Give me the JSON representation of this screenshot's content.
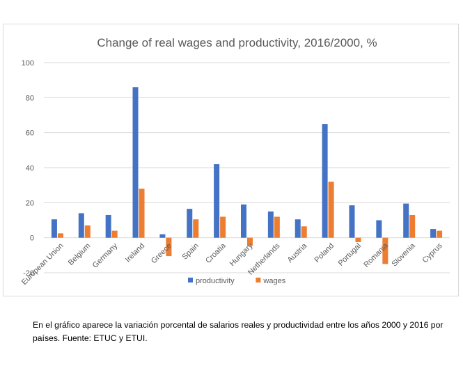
{
  "chart_data": {
    "type": "bar",
    "title": "Change of real wages and productivity, 2016/2000, %",
    "categories": [
      "European Union",
      "Belgium",
      "Germany",
      "Ireland",
      "Greece",
      "Spain",
      "Croatia",
      "Hungary",
      "Netherlands",
      "Austria",
      "Poland",
      "Portugal",
      "Romania",
      "Slovenia",
      "Cyprus"
    ],
    "series": [
      {
        "name": "productivity",
        "color": "#4472c4",
        "values": [
          10.5,
          14,
          13,
          86,
          2,
          16.5,
          42,
          19,
          15,
          10.5,
          65,
          18.5,
          10,
          19.5,
          5
        ]
      },
      {
        "name": "wages",
        "color": "#ed7d31",
        "values": [
          2.5,
          7,
          4,
          28,
          -10.5,
          10.5,
          12,
          -4.5,
          12,
          6.5,
          32,
          -2.5,
          -15,
          13,
          4
        ]
      }
    ],
    "ylim": [
      -20,
      100
    ],
    "yticks": [
      -20,
      0,
      20,
      40,
      60,
      80,
      100
    ],
    "grid": true,
    "legend_position": "bottom"
  },
  "caption": "En el gráfico aparece la variación porcental de salarios reales y productividad entre los años 2000 y 2016 por países. Fuente: ETUC y ETUI."
}
